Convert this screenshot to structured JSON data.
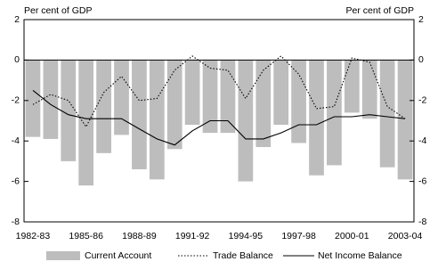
{
  "chart_data": {
    "type": "combo",
    "y_label": "Per cent of GDP",
    "y2_label": "Per cent of GDP",
    "categories": [
      "1982-83",
      null,
      null,
      "1985-86",
      null,
      null,
      "1988-89",
      null,
      null,
      "1991-92",
      null,
      null,
      "1994-95",
      null,
      null,
      "1997-98",
      null,
      null,
      "2000-01",
      null,
      null,
      "2003-04"
    ],
    "series": [
      {
        "name": "Current Account",
        "type": "bar",
        "color": "#bdbdbd",
        "values": [
          -3.8,
          -3.9,
          -5.0,
          -6.2,
          -4.6,
          -3.7,
          -5.4,
          -5.9,
          -4.4,
          -3.2,
          -3.6,
          -3.6,
          -6.0,
          -4.3,
          -3.2,
          -4.1,
          -5.7,
          -5.2,
          -2.6,
          -2.9,
          -5.3,
          -5.9
        ]
      },
      {
        "name": "Trade Balance",
        "type": "line",
        "style": "dotted",
        "color": "#000000",
        "values": [
          -2.2,
          -1.7,
          -2.0,
          -3.3,
          -1.6,
          -0.8,
          -2.0,
          -1.9,
          -0.5,
          0.2,
          -0.4,
          -0.5,
          -1.9,
          -0.5,
          0.2,
          -0.7,
          -2.4,
          -2.3,
          0.1,
          -0.1,
          -2.3,
          -2.9
        ]
      },
      {
        "name": "Net Income Balance",
        "type": "line",
        "style": "solid",
        "color": "#000000",
        "values": [
          -1.5,
          -2.2,
          -2.7,
          -2.9,
          -2.9,
          -2.9,
          -3.4,
          -3.9,
          -4.2,
          -3.5,
          -3.0,
          -3.0,
          -3.9,
          -3.9,
          -3.6,
          -3.2,
          -3.2,
          -2.8,
          -2.8,
          -2.7,
          -2.8,
          -2.9
        ]
      }
    ],
    "ylim": [
      -8,
      2
    ],
    "yticks": [
      -8,
      -6,
      -4,
      -2,
      0,
      2
    ],
    "y2lim": [
      -8,
      2
    ],
    "y2ticks": [
      -8,
      -6,
      -4,
      -2,
      0,
      2
    ],
    "legend": "bottom"
  }
}
